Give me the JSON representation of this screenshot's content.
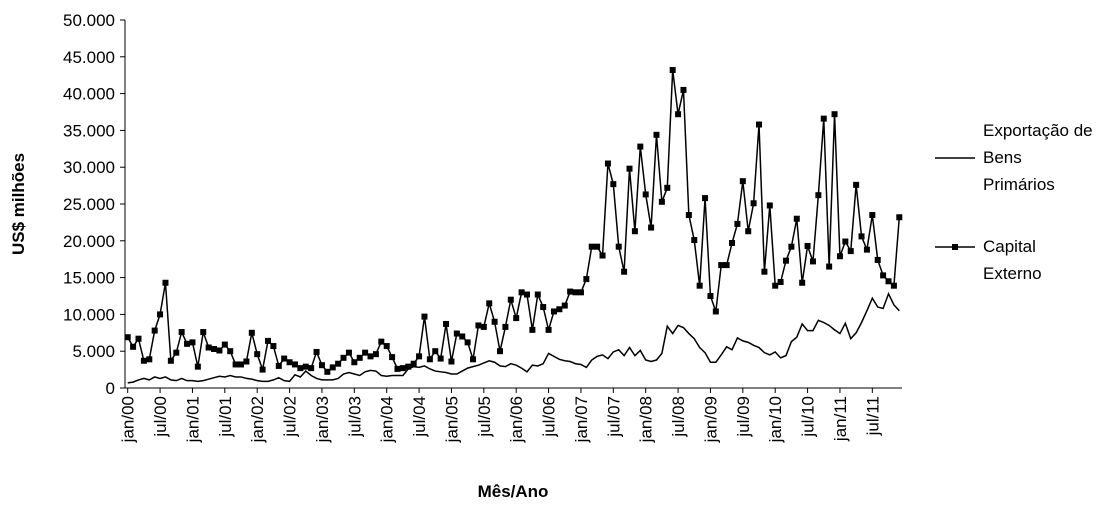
{
  "chart_data": {
    "type": "line",
    "y_label": "US$ milhões",
    "x_label": "Mês/Ano",
    "ylim": [
      0,
      50000
    ],
    "yticks": [
      0,
      {
        "value": 5000,
        "label": "5.000"
      },
      {
        "value": 10000,
        "label": "10.000"
      },
      {
        "value": 15000,
        "label": "15.000"
      },
      {
        "value": 20000,
        "label": "20.000"
      },
      {
        "value": 25000,
        "label": "25.000"
      },
      {
        "value": 30000,
        "label": "30.000"
      },
      {
        "value": 35000,
        "label": "35.000"
      },
      {
        "value": 40000,
        "label": "40.000"
      },
      {
        "value": 45000,
        "label": "45.000"
      },
      {
        "value": 50000,
        "label": "50.000"
      }
    ],
    "legend": "right",
    "categories": [
      "jan/00",
      null,
      null,
      null,
      null,
      null,
      "jul/00",
      null,
      null,
      null,
      null,
      null,
      "jan/01",
      null,
      null,
      null,
      null,
      null,
      "jul/01",
      null,
      null,
      null,
      null,
      null,
      "jan/02",
      null,
      null,
      null,
      null,
      null,
      "jul/02",
      null,
      null,
      null,
      null,
      null,
      "jan/03",
      null,
      null,
      null,
      null,
      null,
      "jul/03",
      null,
      null,
      null,
      null,
      null,
      "jan/04",
      null,
      null,
      null,
      null,
      null,
      "jul/04",
      null,
      null,
      null,
      null,
      null,
      "jan/05",
      null,
      null,
      null,
      null,
      null,
      "jul/05",
      null,
      null,
      null,
      null,
      null,
      "jan/06",
      null,
      null,
      null,
      null,
      null,
      "jul/06",
      null,
      null,
      null,
      null,
      null,
      "jan/07",
      null,
      null,
      null,
      null,
      null,
      "jul/07",
      null,
      null,
      null,
      null,
      null,
      "jan/08",
      null,
      null,
      null,
      null,
      null,
      "jul/08",
      null,
      null,
      null,
      null,
      null,
      "jan/09",
      null,
      null,
      null,
      null,
      null,
      "jul/09",
      null,
      null,
      null,
      null,
      null,
      "jan/10",
      null,
      null,
      null,
      null,
      null,
      "jul/10",
      null,
      null,
      null,
      null,
      null,
      "jan/11",
      null,
      null,
      null,
      null,
      null,
      "jul/11",
      null,
      null,
      null,
      null,
      null
    ],
    "series": [
      {
        "name": "Exportação de Bens Primários",
        "color": "#000000",
        "marker": "none",
        "values": [
          700,
          800,
          1100,
          1300,
          1100,
          1500,
          1300,
          1500,
          1100,
          1000,
          1300,
          1000,
          1000,
          900,
          1000,
          1200,
          1400,
          1600,
          1500,
          1700,
          1500,
          1500,
          1300,
          1200,
          1000,
          900,
          900,
          1100,
          1400,
          1000,
          900,
          1800,
          1500,
          2300,
          1700,
          1300,
          1100,
          1100,
          1100,
          1300,
          1900,
          2100,
          1900,
          1700,
          2200,
          2400,
          2300,
          1700,
          1600,
          1700,
          1700,
          1700,
          2600,
          2900,
          2800,
          3000,
          2600,
          2300,
          2200,
          2100,
          1900,
          1900,
          2300,
          2700,
          2900,
          3100,
          3400,
          3700,
          3500,
          3000,
          2900,
          3300,
          3100,
          2700,
          2200,
          3100,
          3000,
          3300,
          4700,
          4300,
          3900,
          3700,
          3600,
          3300,
          3200,
          2800,
          3800,
          4300,
          4500,
          4000,
          4900,
          5200,
          4400,
          5500,
          4400,
          5100,
          3800,
          3600,
          3800,
          4700,
          8400,
          7400,
          8500,
          8200,
          7400,
          6700,
          5500,
          4800,
          3500,
          3500,
          4500,
          5600,
          5200,
          6800,
          6400,
          6200,
          5800,
          5500,
          4800,
          4500,
          4900,
          4100,
          4400,
          6300,
          6900,
          8700,
          7800,
          7800,
          9200,
          8900,
          8500,
          7900,
          7400,
          8800,
          6700,
          7500,
          8900,
          10500,
          12200,
          11000,
          10800,
          12800,
          11300,
          10500
        ]
      },
      {
        "name": "Capital Externo",
        "color": "#000000",
        "marker": "square",
        "values": [
          6900,
          5600,
          6700,
          3700,
          3900,
          7800,
          10000,
          14300,
          3700,
          4800,
          7600,
          6000,
          6200,
          2900,
          7600,
          5500,
          5300,
          5100,
          5900,
          5000,
          3200,
          3200,
          3600,
          7500,
          4600,
          2500,
          6400,
          5700,
          3000,
          4000,
          3500,
          3200,
          2700,
          2900,
          2700,
          4900,
          3100,
          2200,
          2800,
          3300,
          4100,
          4800,
          3500,
          4100,
          4800,
          4300,
          4600,
          6300,
          5700,
          4200,
          2600,
          2700,
          2900,
          3300,
          4300,
          9700,
          3900,
          5000,
          4000,
          8700,
          3600,
          7400,
          7000,
          6200,
          3900,
          8500,
          8300,
          11500,
          9000,
          5000,
          8300,
          12000,
          9500,
          13000,
          12700,
          7900,
          12700,
          11000,
          7900,
          10400,
          10700,
          11200,
          13100,
          13000,
          13000,
          14800,
          19200,
          19200,
          18000,
          30500,
          27700,
          19200,
          15800,
          29800,
          21300,
          32800,
          26300,
          21800,
          34400,
          25300,
          27200,
          43200,
          37200,
          40500,
          23500,
          20100,
          13900,
          25800,
          12500,
          10400,
          16700,
          16700,
          19700,
          22300,
          28100,
          21300,
          25100,
          35800,
          15800,
          24800,
          13900,
          14400,
          17300,
          19200,
          23000,
          14300,
          19300,
          17200,
          26200,
          36600,
          16500,
          37200,
          17900,
          19900,
          18600,
          27600,
          20600,
          18800,
          23500,
          17400,
          15300,
          14500,
          13900,
          23200
        ]
      }
    ]
  }
}
